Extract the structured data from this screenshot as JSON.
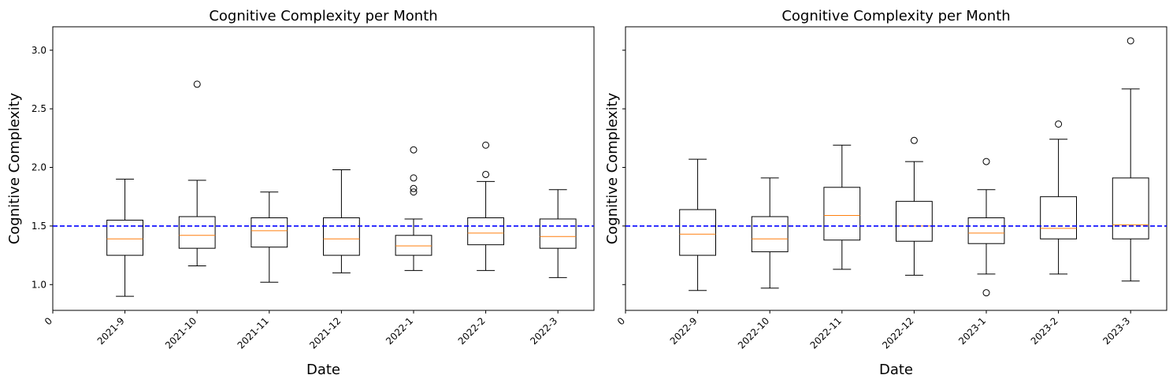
{
  "colors": {
    "box": "#000000",
    "median": "#ff7f0e",
    "reference_line": "#0000ff",
    "background": "#ffffff"
  },
  "chart_data": [
    {
      "type": "box",
      "title": "Cognitive Complexity per Month",
      "xlabel": "Date",
      "ylabel": "Cognitive Complexity",
      "ylim": [
        0.78,
        3.2
      ],
      "yticks": [
        "1.0",
        "1.5",
        "2.0",
        "2.5",
        "3.0"
      ],
      "ytick_values": [
        1.0,
        1.5,
        2.0,
        2.5,
        3.0
      ],
      "show_ytick_labels": true,
      "xticks": [
        "0",
        "2021-9",
        "2021-10",
        "2021-11",
        "2021-12",
        "2022-1",
        "2022-2",
        "2022-3"
      ],
      "reference_line": 1.5,
      "grid": false,
      "boxes": [
        {
          "category": "2021-9",
          "whisker_low": 0.9,
          "q1": 1.25,
          "median": 1.39,
          "q3": 1.55,
          "whisker_high": 1.9,
          "outliers": []
        },
        {
          "category": "2021-10",
          "whisker_low": 1.16,
          "q1": 1.31,
          "median": 1.42,
          "q3": 1.58,
          "whisker_high": 1.89,
          "outliers": [
            2.71
          ]
        },
        {
          "category": "2021-11",
          "whisker_low": 1.02,
          "q1": 1.32,
          "median": 1.46,
          "q3": 1.57,
          "whisker_high": 1.79,
          "outliers": []
        },
        {
          "category": "2021-12",
          "whisker_low": 1.1,
          "q1": 1.25,
          "median": 1.39,
          "q3": 1.57,
          "whisker_high": 1.98,
          "outliers": []
        },
        {
          "category": "2022-1",
          "whisker_low": 1.12,
          "q1": 1.25,
          "median": 1.33,
          "q3": 1.42,
          "whisker_high": 1.56,
          "outliers": [
            1.79,
            1.82,
            1.91,
            2.15
          ]
        },
        {
          "category": "2022-2",
          "whisker_low": 1.12,
          "q1": 1.34,
          "median": 1.44,
          "q3": 1.57,
          "whisker_high": 1.88,
          "outliers": [
            1.94,
            2.19
          ]
        },
        {
          "category": "2022-3",
          "whisker_low": 1.06,
          "q1": 1.31,
          "median": 1.41,
          "q3": 1.56,
          "whisker_high": 1.81,
          "outliers": []
        }
      ]
    },
    {
      "type": "box",
      "title": "Cognitive Complexity per Month",
      "xlabel": "Date",
      "ylabel": "Cognitive Complexity",
      "ylim": [
        0.78,
        3.2
      ],
      "yticks": [],
      "ytick_values": [
        1.0,
        1.5,
        2.0,
        2.5,
        3.0
      ],
      "show_ytick_labels": false,
      "xticks": [
        "0",
        "2022-9",
        "2022-10",
        "2022-11",
        "2022-12",
        "2023-1",
        "2023-2",
        "2023-3"
      ],
      "reference_line": 1.5,
      "grid": false,
      "boxes": [
        {
          "category": "2022-9",
          "whisker_low": 0.95,
          "q1": 1.25,
          "median": 1.43,
          "q3": 1.64,
          "whisker_high": 2.07,
          "outliers": []
        },
        {
          "category": "2022-10",
          "whisker_low": 0.97,
          "q1": 1.28,
          "median": 1.39,
          "q3": 1.58,
          "whisker_high": 1.91,
          "outliers": []
        },
        {
          "category": "2022-11",
          "whisker_low": 1.13,
          "q1": 1.38,
          "median": 1.59,
          "q3": 1.83,
          "whisker_high": 2.19,
          "outliers": []
        },
        {
          "category": "2022-12",
          "whisker_low": 1.08,
          "q1": 1.37,
          "median": 1.5,
          "q3": 1.71,
          "whisker_high": 2.05,
          "outliers": [
            2.23
          ]
        },
        {
          "category": "2023-1",
          "whisker_low": 1.09,
          "q1": 1.35,
          "median": 1.44,
          "q3": 1.57,
          "whisker_high": 1.81,
          "outliers": [
            0.93,
            2.05
          ]
        },
        {
          "category": "2023-2",
          "whisker_low": 1.09,
          "q1": 1.39,
          "median": 1.48,
          "q3": 1.75,
          "whisker_high": 2.24,
          "outliers": [
            2.37
          ]
        },
        {
          "category": "2023-3",
          "whisker_low": 1.03,
          "q1": 1.39,
          "median": 1.51,
          "q3": 1.91,
          "whisker_high": 2.67,
          "outliers": [
            3.08
          ]
        }
      ]
    }
  ]
}
